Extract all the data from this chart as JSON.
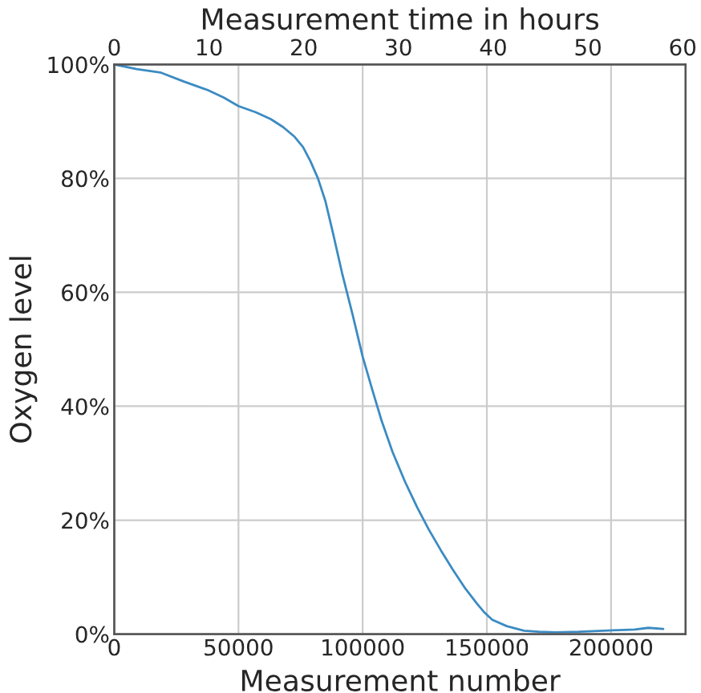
{
  "chart_data": {
    "type": "line",
    "xlabel": "Measurement number",
    "ylabel": "Oxygen level",
    "x2label": "Measurement time in hours",
    "xlim": [
      0,
      230000
    ],
    "xticks": [
      0,
      50000,
      100000,
      150000,
      200000
    ],
    "x2lim": [
      0,
      60.3
    ],
    "x2ticks": [
      0,
      10,
      20,
      30,
      40,
      50,
      60
    ],
    "ylim": [
      0,
      100
    ],
    "yticks": [
      {
        "value": 0,
        "label": "0%"
      },
      {
        "value": 20,
        "label": "20%"
      },
      {
        "value": 40,
        "label": "40%"
      },
      {
        "value": 60,
        "label": "60%"
      },
      {
        "value": 80,
        "label": "80%"
      },
      {
        "value": 100,
        "label": "100%"
      }
    ],
    "grid": true,
    "marker": "none",
    "line_style": "solid",
    "series": [
      {
        "color": "#3b8bc2",
        "x": [
          0,
          9000,
          18500,
          28000,
          37600,
          44000,
          50000,
          57000,
          63000,
          68000,
          72600,
          76000,
          79000,
          82000,
          85000,
          88000,
          91700,
          96000,
          100000,
          103800,
          107600,
          112000,
          117000,
          122000,
          126700,
          131500,
          136300,
          141000,
          145900,
          149000,
          152200,
          158000,
          165000,
          171000,
          177700,
          187000,
          196800,
          203000,
          209500,
          215000,
          221000
        ],
        "values": [
          100,
          99.2,
          98.6,
          97,
          95.5,
          94.2,
          92.7,
          91.6,
          90.4,
          89,
          87.3,
          85.5,
          83,
          80,
          76,
          70.5,
          63.4,
          56,
          48.7,
          43,
          37.5,
          32,
          26.8,
          22.2,
          18.3,
          14.7,
          11.3,
          8.2,
          5.4,
          3.8,
          2.5,
          1.4,
          0.6,
          0.4,
          0.3,
          0.4,
          0.6,
          0.7,
          0.8,
          1.1,
          0.9
        ]
      }
    ]
  }
}
